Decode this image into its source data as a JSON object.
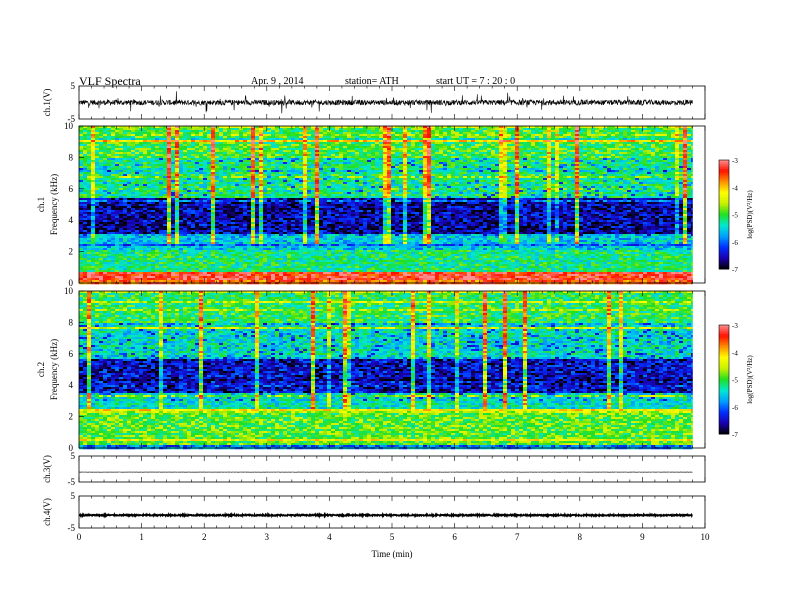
{
  "header": {
    "title": "VLF  Spectra",
    "date": "Apr. 9  ,  2014",
    "station": "station= ATH",
    "start": "start  UT  =   7  : 20 : 0"
  },
  "colors": {
    "colormap": [
      "#000000",
      "#1a00b0",
      "#0030ff",
      "#00a0ff",
      "#00e8d0",
      "#20e020",
      "#c8f000",
      "#ffff00",
      "#ff9000",
      "#ff1000",
      "#ff9090"
    ],
    "trace": "#000000"
  },
  "chart_data": [
    {
      "type": "line",
      "name": "ch1-waveform",
      "ylabel": "ch.1(V)",
      "ylim": [
        -5,
        5
      ],
      "y_ticks": [
        "5",
        "-5"
      ],
      "mean_level": 0.0,
      "noise_amplitude": 0.8,
      "grid": false
    },
    {
      "type": "heatmap",
      "name": "ch1-spectrogram",
      "ylabel": "ch.1\nFrequency  (kHz)",
      "ylim": [
        0,
        10
      ],
      "y_ticks": [
        "0",
        "2",
        "4",
        "6",
        "8",
        "10"
      ],
      "x_range_min": [
        0,
        9.8
      ],
      "colorbar": {
        "label": "log(PSD)(V²/Hz)",
        "range": [
          -7,
          -3
        ],
        "ticks": [
          "-3",
          "-4",
          "-5",
          "-6",
          "-7"
        ]
      },
      "band_logpsd": [
        {
          "f": [
            0.0,
            0.3
          ],
          "value": -3.6
        },
        {
          "f": [
            0.3,
            0.8
          ],
          "value": -3.3
        },
        {
          "f": [
            0.8,
            2.2
          ],
          "value": -5.2
        },
        {
          "f": [
            2.2,
            3.2
          ],
          "value": -5.6
        },
        {
          "f": [
            3.2,
            5.5
          ],
          "value": -6.5
        },
        {
          "f": [
            5.5,
            8.0
          ],
          "value": -5.2
        },
        {
          "f": [
            8.0,
            10.0
          ],
          "value": -5.0
        }
      ]
    },
    {
      "type": "heatmap",
      "name": "ch2-spectrogram",
      "ylabel": "ch.2\nFrequency  (kHz)",
      "ylim": [
        0,
        10
      ],
      "y_ticks": [
        "0",
        "2",
        "4",
        "6",
        "8",
        "10"
      ],
      "x_range_min": [
        0,
        9.8
      ],
      "colorbar": {
        "label": "log(PSD)(V²/Hz)",
        "range": [
          -7,
          -3
        ],
        "ticks": [
          "-3",
          "-4",
          "-5",
          "-6",
          "-7"
        ]
      },
      "band_logpsd": [
        {
          "f": [
            0.0,
            0.3
          ],
          "value": -6.0
        },
        {
          "f": [
            0.3,
            2.5
          ],
          "value": -4.9
        },
        {
          "f": [
            2.5,
            3.5
          ],
          "value": -5.4
        },
        {
          "f": [
            3.5,
            5.8
          ],
          "value": -6.4
        },
        {
          "f": [
            5.8,
            8.0
          ],
          "value": -5.4
        },
        {
          "f": [
            8.0,
            10.0
          ],
          "value": -5.1
        }
      ]
    },
    {
      "type": "line",
      "name": "ch3-waveform",
      "ylabel": "ch.3(V)",
      "ylim": [
        -5,
        5
      ],
      "y_ticks": [
        "5",
        "-5"
      ],
      "mean_level": -1.2,
      "noise_amplitude": 0.05,
      "grid": false
    },
    {
      "type": "line",
      "name": "ch4-waveform",
      "ylabel": "ch.4(V)",
      "ylim": [
        -5,
        5
      ],
      "y_ticks": [
        "5",
        "-5"
      ],
      "mean_level": -1.0,
      "noise_amplitude": 0.2,
      "grid": false
    }
  ],
  "x_axis": {
    "label": "Time  (min)",
    "range": [
      0,
      10
    ],
    "tick_labels": [
      "0",
      "1",
      "2",
      "3",
      "4",
      "5",
      "6",
      "7",
      "8",
      "9",
      "10"
    ]
  }
}
